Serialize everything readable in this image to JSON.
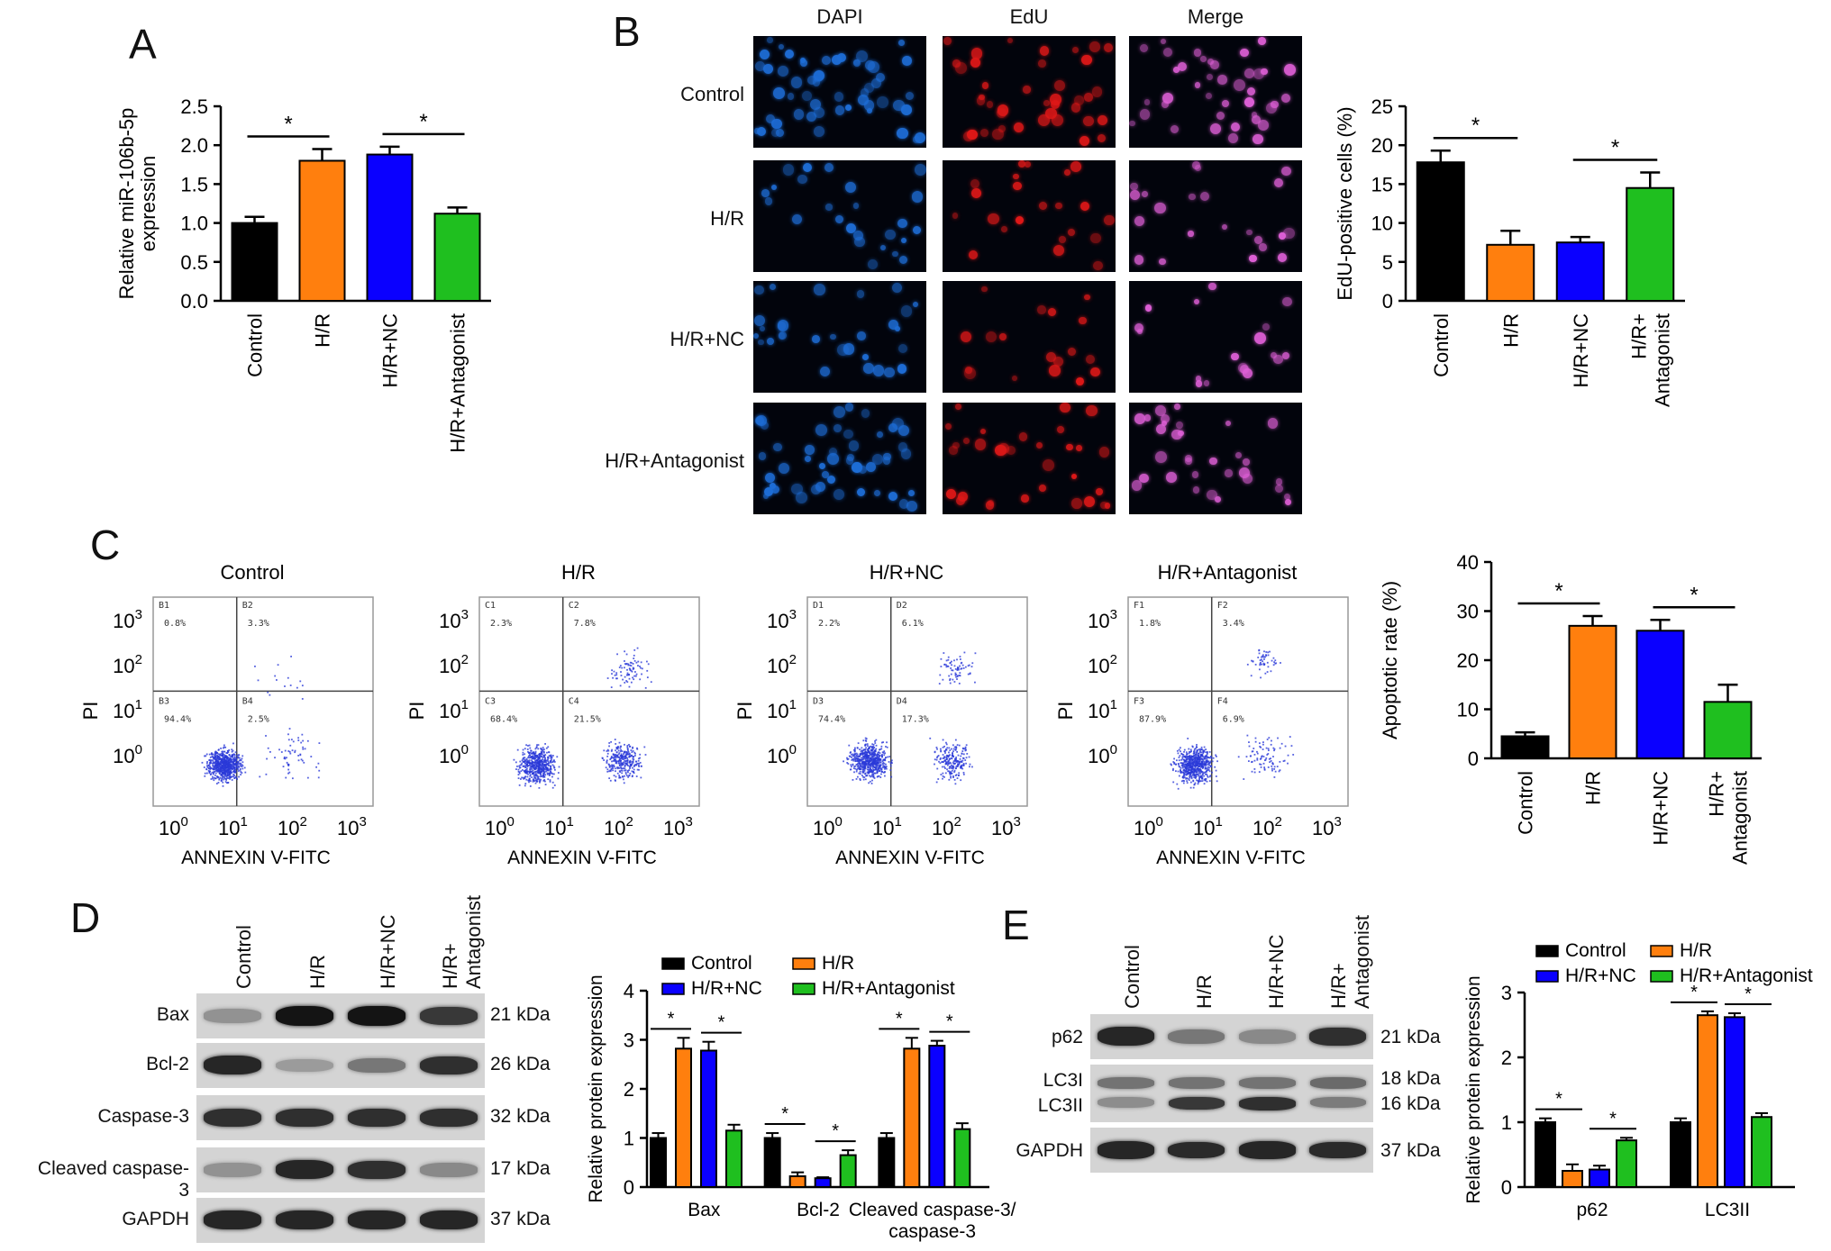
{
  "panels": {
    "a": "A",
    "b": "B",
    "c": "C",
    "d": "D",
    "e": "E"
  },
  "colors": {
    "control": "#000000",
    "hr": "#ff7f0e",
    "hrnc": "#0a00ff",
    "antagonist": "#1fbf1f",
    "dapi": "#1e6ed8",
    "edu": "#e01818",
    "merge": "#e060d8"
  },
  "groups": [
    "Control",
    "H/R",
    "H/R+NC",
    "H/R+Antagonist"
  ],
  "groups_wrapped": [
    [
      "Control"
    ],
    [
      "H/R"
    ],
    [
      "H/R+NC"
    ],
    [
      "H/R+",
      "Antagonist"
    ]
  ],
  "significance": "*",
  "panel_b": {
    "columns": [
      "DAPI",
      "EdU",
      "Merge"
    ],
    "rows": [
      "Control",
      "H/R",
      "H/R+NC",
      "H/R+Antagonist"
    ]
  },
  "panel_c": {
    "titles": [
      "Control",
      "H/R",
      "H/R+NC",
      "H/R+Antagonist"
    ],
    "xlabel": "ANNEXIN V-FITC",
    "ylabel": "PI",
    "ticks": [
      [
        "10",
        "0"
      ],
      [
        "10",
        "1"
      ],
      [
        "10",
        "2"
      ],
      [
        "10",
        "3"
      ]
    ],
    "quadrants": [
      {
        "labels": [
          "B1",
          "B2",
          "B3",
          "B4"
        ],
        "values": [
          "0.8%",
          "3.3%",
          "94.4%",
          "2.5%"
        ]
      },
      {
        "labels": [
          "C1",
          "C2",
          "C3",
          "C4"
        ],
        "values": [
          "2.3%",
          "7.8%",
          "68.4%",
          "21.5%"
        ]
      },
      {
        "labels": [
          "D1",
          "D2",
          "D3",
          "D4"
        ],
        "values": [
          "2.2%",
          "6.1%",
          "74.4%",
          "17.3%"
        ]
      },
      {
        "labels": [
          "F1",
          "F2",
          "F3",
          "F4"
        ],
        "values": [
          "1.8%",
          "3.4%",
          "87.9%",
          "6.9%"
        ]
      }
    ]
  },
  "panel_d": {
    "rows": [
      "Bax",
      "Bcl-2",
      "Caspase-3",
      "Cleaved caspase-3",
      "GAPDH"
    ],
    "kda": [
      "21 kDa",
      "26 kDa",
      "32 kDa",
      "17 kDa",
      "37 kDa"
    ]
  },
  "panel_e": {
    "rows": [
      "p62",
      "LC3I",
      "LC3II",
      "GAPDH"
    ],
    "kda": [
      "21 kDa",
      "18 kDa",
      "16 kDa",
      "37 kDa"
    ]
  },
  "chart_data": [
    {
      "panel": "A",
      "type": "bar",
      "categories": [
        "Control",
        "H/R",
        "H/R+NC",
        "H/R+Antagonist"
      ],
      "values": [
        1.0,
        1.8,
        1.88,
        1.12
      ],
      "errors": [
        0.08,
        0.15,
        0.1,
        0.08
      ],
      "ylabel": "Relative miR-106b-5p expression",
      "ylim": [
        0,
        2.5
      ],
      "yticks": [
        "0.0",
        "0.5",
        "1.0",
        "1.5",
        "2.0",
        "2.5"
      ],
      "yticks_values": [
        0,
        0.5,
        1,
        1.5,
        2,
        2.5
      ]
    },
    {
      "panel": "B",
      "type": "bar",
      "categories": [
        "Control",
        "H/R",
        "H/R+NC",
        "H/R+Antagonist"
      ],
      "values": [
        17.8,
        7.2,
        7.5,
        14.5
      ],
      "errors": [
        1.5,
        1.8,
        0.7,
        2.0
      ],
      "ylabel": "EdU-positive cells (%)",
      "ylim": [
        0,
        25
      ],
      "yticks": [
        "0",
        "5",
        "10",
        "15",
        "20",
        "25"
      ],
      "yticks_values": [
        0,
        5,
        10,
        15,
        20,
        25
      ]
    },
    {
      "panel": "C",
      "type": "bar",
      "categories": [
        "Control",
        "H/R",
        "H/R+NC",
        "H/R+Antagonist"
      ],
      "values": [
        4.5,
        27.0,
        26.0,
        11.5
      ],
      "errors": [
        0.8,
        2.0,
        2.2,
        3.5
      ],
      "ylabel": "Apoptotic rate (%)",
      "ylim": [
        0,
        40
      ],
      "yticks": [
        "0",
        "10",
        "20",
        "30",
        "40"
      ],
      "yticks_values": [
        0,
        10,
        20,
        30,
        40
      ]
    },
    {
      "panel": "D",
      "type": "bar",
      "categories": [
        "Bax",
        "Bcl-2",
        "Cleaved caspase-3/ caspase-3"
      ],
      "series": [
        {
          "name": "Control",
          "values": [
            1.0,
            1.0,
            1.0
          ]
        },
        {
          "name": "H/R",
          "values": [
            2.82,
            0.22,
            2.82
          ]
        },
        {
          "name": "H/R+NC",
          "values": [
            2.78,
            0.18,
            2.88
          ]
        },
        {
          "name": "H/R+Antagonist",
          "values": [
            1.15,
            0.65,
            1.18
          ]
        }
      ],
      "errors": [
        [
          0.1,
          0.22,
          0.18,
          0.12
        ],
        [
          0.1,
          0.08,
          0.02,
          0.1
        ],
        [
          0.1,
          0.22,
          0.1,
          0.12
        ]
      ],
      "ylabel": "Relative protein expression",
      "ylim": [
        0,
        4
      ],
      "yticks": [
        "0",
        "1",
        "2",
        "3",
        "4"
      ],
      "yticks_values": [
        0,
        1,
        2,
        3,
        4
      ]
    },
    {
      "panel": "E",
      "type": "bar",
      "categories": [
        "p62",
        "LC3II"
      ],
      "series": [
        {
          "name": "Control",
          "values": [
            1.0,
            1.0
          ]
        },
        {
          "name": "H/R",
          "values": [
            0.25,
            2.65
          ]
        },
        {
          "name": "H/R+NC",
          "values": [
            0.27,
            2.62
          ]
        },
        {
          "name": "H/R+Antagonist",
          "values": [
            0.72,
            1.08
          ]
        }
      ],
      "errors": [
        [
          0.06,
          0.1,
          0.06,
          0.04
        ],
        [
          0.06,
          0.06,
          0.06,
          0.06
        ]
      ],
      "ylabel": "Relative protein expression",
      "ylim": [
        0,
        3
      ],
      "yticks": [
        "0",
        "1",
        "2",
        "3"
      ],
      "yticks_values": [
        0,
        1,
        2,
        3
      ]
    }
  ]
}
